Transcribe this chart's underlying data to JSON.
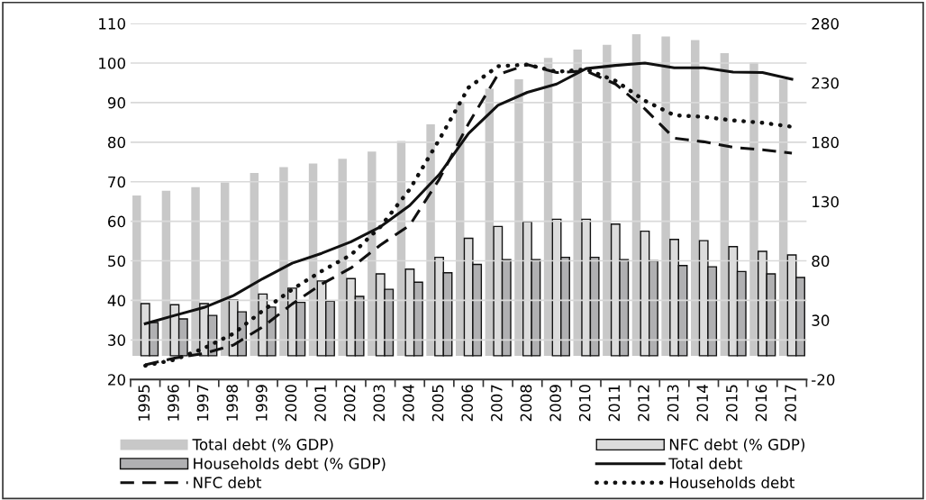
{
  "chart_data": {
    "type": "bar",
    "categories": [
      "1995",
      "1996",
      "1997",
      "1998",
      "1999",
      "2000",
      "2001",
      "2002",
      "2003",
      "2004",
      "2005",
      "2006",
      "2007",
      "2008",
      "2009",
      "2010",
      "2011",
      "2012",
      "2013",
      "2014",
      "2015",
      "2016",
      "2017"
    ],
    "series": [
      {
        "name": "Total debt (% GDP)",
        "axis": "y2",
        "color": "#c8c8c8",
        "values": [
          135,
          139,
          142,
          146,
          154,
          159,
          162,
          166,
          172,
          181,
          195,
          214,
          225,
          233,
          251,
          258,
          262,
          271,
          269,
          266,
          255,
          247,
          233
        ]
      },
      {
        "name": "NFC debt (% GDP)",
        "axis": "y2",
        "color": "#dcdcdc",
        "values": [
          44,
          43,
          44,
          47,
          52,
          57,
          63,
          65,
          69,
          73,
          83,
          99,
          109,
          113,
          115,
          115,
          111,
          105,
          98,
          97,
          92,
          88,
          85
        ]
      },
      {
        "name": "Households debt (% GDP)",
        "axis": "y2",
        "color": "#b0b0b2",
        "values": [
          28,
          31,
          34,
          37,
          41,
          45,
          46,
          50,
          56,
          62,
          70,
          77,
          81,
          81,
          83,
          83,
          81,
          80,
          76,
          75,
          71,
          69,
          66
        ]
      },
      {
        "name": "Total debt",
        "type": "line",
        "axis": "y",
        "color": "#111111",
        "line_style": "solid",
        "values": [
          34.1,
          36.2,
          38.2,
          41.2,
          45.5,
          49.4,
          51.9,
          54.8,
          58.6,
          64.0,
          71.8,
          82.2,
          89.3,
          92.6,
          94.7,
          98.6,
          99.4,
          100.0,
          98.8,
          98.8,
          97.7,
          97.6,
          95.9
        ]
      },
      {
        "name": "NFC debt",
        "type": "line",
        "axis": "y",
        "color": "#111111",
        "line_style": "dashed",
        "values": [
          23.7,
          25.4,
          26.6,
          28.7,
          33.3,
          39.1,
          44.1,
          48.2,
          54.0,
          59.0,
          70.6,
          84.7,
          97.1,
          99.6,
          97.6,
          98.0,
          94.7,
          88.4,
          81.0,
          80.1,
          78.7,
          78.1,
          77.2
        ]
      },
      {
        "name": "Households debt",
        "type": "line",
        "axis": "y",
        "color": "#111111",
        "line_style": "dotted",
        "values": [
          23.5,
          25.0,
          27.9,
          31.6,
          37.4,
          42.8,
          47.4,
          51.5,
          58.6,
          68.1,
          80.6,
          93.8,
          99.2,
          99.6,
          97.8,
          98.4,
          95.5,
          90.5,
          86.8,
          86.4,
          85.5,
          84.9,
          83.9
        ]
      }
    ],
    "ylim": [
      20,
      110
    ],
    "yticks": [
      20,
      30,
      40,
      50,
      60,
      70,
      80,
      90,
      100,
      110
    ],
    "y2lim": [
      -20,
      280
    ],
    "y2ticks": [
      {
        "value": -20,
        "label": "-20"
      },
      30,
      80,
      130,
      180,
      230,
      280
    ],
    "grid": "y",
    "legend": "bottom"
  }
}
